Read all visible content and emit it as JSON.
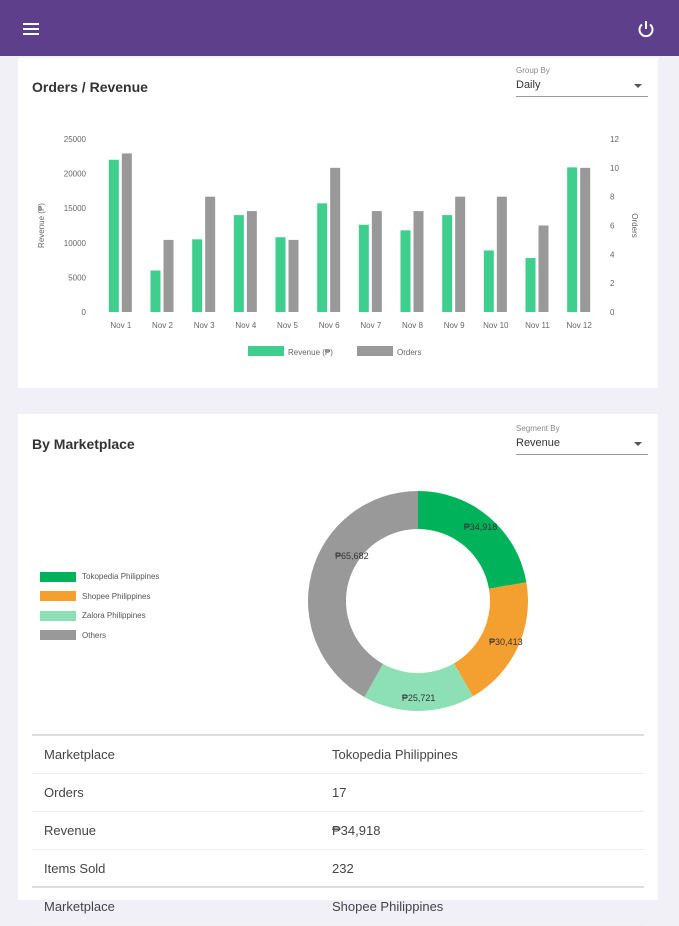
{
  "header": {
    "menu_icon": "hamburger-icon",
    "power_icon": "power-icon"
  },
  "orders_card": {
    "title": "Orders / Revenue",
    "group_by": {
      "label": "Group By",
      "value": "Daily"
    }
  },
  "marketplace_card": {
    "title": "By Marketplace",
    "segment_by": {
      "label": "Segment By",
      "value": "Revenue"
    },
    "table": [
      {
        "key": "Marketplace",
        "value": "Tokopedia Philippines"
      },
      {
        "key": "Orders",
        "value": "17"
      },
      {
        "key": "Revenue",
        "value": "₱34,918"
      },
      {
        "key": "Items Sold",
        "value": "232"
      },
      {
        "key": "Marketplace",
        "value": "Shopee Philippines"
      }
    ]
  },
  "chart_data": [
    {
      "type": "bar",
      "categories": [
        "Nov 1",
        "Nov 2",
        "Nov 3",
        "Nov 4",
        "Nov 5",
        "Nov 6",
        "Nov 7",
        "Nov 8",
        "Nov 9",
        "Nov 10",
        "Nov 11",
        "Nov 12"
      ],
      "series": [
        {
          "name": "Revenue (₱)",
          "axis": "left",
          "color": "#3ecf8e",
          "values": [
            22000,
            6000,
            10500,
            14000,
            10800,
            15700,
            12600,
            11800,
            14000,
            8900,
            7800,
            20900
          ]
        },
        {
          "name": "Orders",
          "axis": "right",
          "color": "#999999",
          "values": [
            11,
            5,
            8,
            7,
            5,
            10,
            7,
            7,
            8,
            8,
            6,
            10
          ]
        }
      ],
      "ylabel": "Revenue (₱)",
      "y2label": "Orders",
      "ylim": [
        0,
        25000
      ],
      "y2lim": [
        0,
        12
      ],
      "yticks": [
        "0",
        "5000",
        "10000",
        "15000",
        "20000",
        "25000"
      ],
      "y2ticks": [
        "0",
        "2",
        "4",
        "6",
        "8",
        "10",
        "12"
      ],
      "legend": "bottom"
    },
    {
      "type": "pie",
      "labels": [
        "Tokopedia Philippines",
        "Shopee Philippines",
        "Zalora Philippines",
        "Others"
      ],
      "values": [
        34918,
        30413,
        25721,
        65682
      ],
      "data_labels": [
        "₱34,918",
        "₱30,413",
        "₱25,721",
        "₱65,682"
      ],
      "colors": [
        "#00b35a",
        "#f4a030",
        "#8de0b5",
        "#999999"
      ],
      "legend": "left"
    }
  ]
}
